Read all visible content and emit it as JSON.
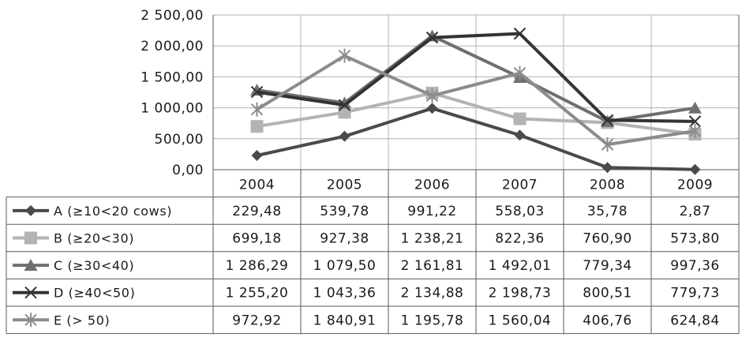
{
  "chart_data": {
    "type": "line",
    "categories": [
      "2004",
      "2005",
      "2006",
      "2007",
      "2008",
      "2009"
    ],
    "ylim": [
      0,
      2500
    ],
    "y_ticks": [
      "0,00",
      "500,00",
      "1 000,00",
      "1 500,00",
      "2 000,00",
      "2 500,00"
    ],
    "grid": true,
    "legend_placement": "data-table-left",
    "series": [
      {
        "name": "A (≥10<20 cows)",
        "marker": "diamond",
        "color": "#4a4a4a",
        "values": [
          229.48,
          539.78,
          991.22,
          558.03,
          35.78,
          2.87
        ],
        "labels": [
          "229,48",
          "539,78",
          "991,22",
          "558,03",
          "35,78",
          "2,87"
        ]
      },
      {
        "name": "B (≥20<30)",
        "marker": "square",
        "color": "#b3b3b3",
        "values": [
          699.18,
          927.38,
          1238.21,
          822.36,
          760.9,
          573.8
        ],
        "labels": [
          "699,18",
          "927,38",
          "1 238,21",
          "822,36",
          "760,90",
          "573,80"
        ]
      },
      {
        "name": "C (≥30<40)",
        "marker": "triangle",
        "color": "#6f6f6f",
        "values": [
          1286.29,
          1079.5,
          2161.81,
          1492.01,
          779.34,
          997.36
        ],
        "labels": [
          "1 286,29",
          "1 079,50",
          "2 161,81",
          "1 492,01",
          "779,34",
          "997,36"
        ]
      },
      {
        "name": "D (≥40<50)",
        "marker": "x",
        "color": "#333333",
        "values": [
          1255.2,
          1043.36,
          2134.88,
          2198.73,
          800.51,
          779.73
        ],
        "labels": [
          "1 255,20",
          "1 043,36",
          "2 134,88",
          "2 198,73",
          "800,51",
          "779,73"
        ]
      },
      {
        "name": "E (>  50)",
        "marker": "star",
        "color": "#8c8c8c",
        "values": [
          972.92,
          1840.91,
          1195.78,
          1560.04,
          406.76,
          624.84
        ],
        "labels": [
          "972,92",
          "1 840,91",
          "1 195,78",
          "1 560,04",
          "406,76",
          "624,84"
        ]
      }
    ]
  }
}
